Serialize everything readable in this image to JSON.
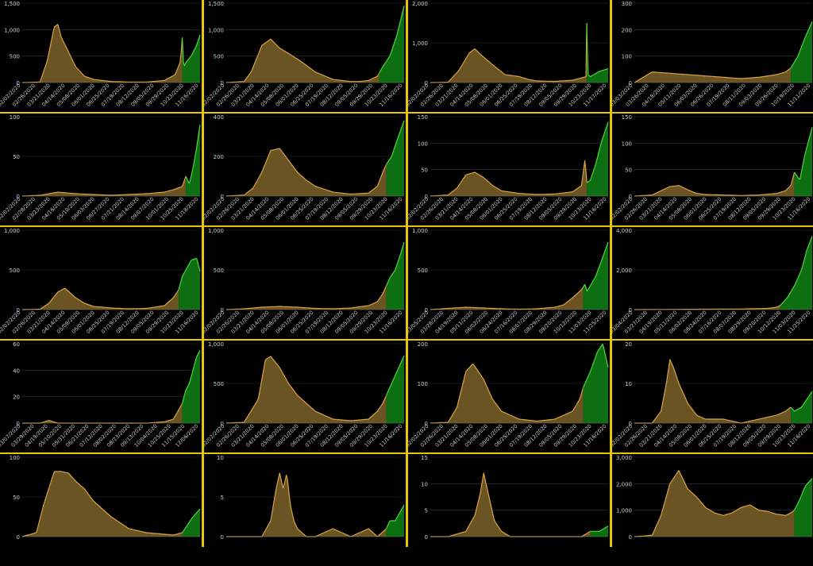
{
  "colors": {
    "early": "#d9a441",
    "early_fill": "#6b5423",
    "recent": "#4ad93c",
    "recent_fill": "#0e6e12",
    "axis_text": "#cccccc",
    "grid": "#333333",
    "divider": "#e6c800"
  },
  "chart_data": [
    {
      "type": "area",
      "ylim": [
        0,
        1500
      ],
      "yticks": [
        "0",
        "500",
        "1,000",
        "1,500"
      ],
      "xticks": [
        "02/02/2020",
        "02/26/2020",
        "03/21/2020",
        "04/14/2020",
        "05/08/2020",
        "06/01/2020",
        "06/25/2020",
        "07/19/2020",
        "08/12/2020",
        "09/05/2020",
        "09/29/2020",
        "10/23/2020",
        "11/16/2020"
      ],
      "split": 0.9,
      "x": [
        0,
        0.1,
        0.14,
        0.18,
        0.2,
        0.22,
        0.25,
        0.3,
        0.35,
        0.4,
        0.5,
        0.6,
        0.7,
        0.8,
        0.86,
        0.89,
        0.9,
        0.905,
        0.91,
        0.92,
        0.95,
        0.98,
        1
      ],
      "values": [
        0,
        10,
        400,
        1050,
        1100,
        850,
        650,
        300,
        120,
        60,
        20,
        10,
        10,
        40,
        150,
        400,
        850,
        400,
        300,
        380,
        500,
        700,
        900
      ]
    },
    {
      "type": "area",
      "ylim": [
        0,
        1500
      ],
      "yticks": [
        "0",
        "500",
        "1,000",
        "1,500"
      ],
      "xticks": [
        "02/02/2020",
        "02/26/2020",
        "03/21/2020",
        "04/14/2020",
        "05/08/2020",
        "06/01/2020",
        "06/25/2020",
        "07/19/2020",
        "08/12/2020",
        "09/05/2020",
        "09/29/2020",
        "10/23/2020",
        "11/16/2020"
      ],
      "split": 0.86,
      "x": [
        0,
        0.1,
        0.14,
        0.2,
        0.25,
        0.3,
        0.35,
        0.42,
        0.5,
        0.6,
        0.7,
        0.75,
        0.8,
        0.85,
        0.88,
        0.92,
        0.96,
        1
      ],
      "values": [
        0,
        20,
        200,
        700,
        820,
        650,
        550,
        400,
        200,
        60,
        20,
        20,
        40,
        120,
        300,
        500,
        900,
        1450
      ]
    },
    {
      "type": "area",
      "ylim": [
        0,
        2000
      ],
      "yticks": [
        "0",
        "1,000",
        "2,000"
      ],
      "xticks": [
        "02/02/2020",
        "02/26/2020",
        "03/21/2020",
        "04/14/2020",
        "05/08/2020",
        "06/01/2020",
        "06/25/2020",
        "07/19/2020",
        "08/12/2020",
        "09/05/2020",
        "09/29/2020",
        "10/23/2020",
        "11/17/2020"
      ],
      "split": 0.88,
      "x": [
        0,
        0.1,
        0.16,
        0.22,
        0.25,
        0.28,
        0.35,
        0.42,
        0.5,
        0.55,
        0.6,
        0.7,
        0.8,
        0.86,
        0.875,
        0.88,
        0.885,
        0.9,
        0.95,
        1
      ],
      "values": [
        0,
        10,
        300,
        750,
        850,
        720,
        450,
        200,
        150,
        80,
        40,
        30,
        60,
        130,
        150,
        1500,
        200,
        150,
        280,
        350
      ]
    },
    {
      "type": "area",
      "ylim": [
        0,
        300
      ],
      "yticks": [
        "0",
        "100",
        "200",
        "300"
      ],
      "xticks": [
        "03/03/2020",
        "03/26/2020",
        "04/18/2020",
        "05/11/2020",
        "06/03/2020",
        "06/26/2020",
        "07/19/2020",
        "08/11/2020",
        "09/03/2020",
        "09/26/2020",
        "10/19/2020",
        "11/11/2020"
      ],
      "split": 0.88,
      "x": [
        0,
        0.05,
        0.1,
        0.2,
        0.3,
        0.4,
        0.5,
        0.6,
        0.7,
        0.8,
        0.85,
        0.88,
        0.92,
        0.96,
        1
      ],
      "values": [
        0,
        20,
        40,
        35,
        30,
        25,
        20,
        15,
        20,
        30,
        40,
        55,
        100,
        170,
        230
      ]
    },
    {
      "type": "area",
      "ylim": [
        0,
        100
      ],
      "yticks": [
        "0",
        "50",
        "100"
      ],
      "xticks": [
        "02/02/2020",
        "02/28/2020",
        "03/23/2020",
        "04/16/2020",
        "05/10/2020",
        "06/03/2020",
        "06/27/2020",
        "07/21/2020",
        "08/14/2020",
        "09/07/2020",
        "10/01/2020",
        "10/25/2020",
        "11/18/2020"
      ],
      "split": 0.92,
      "x": [
        0,
        0.1,
        0.15,
        0.2,
        0.3,
        0.4,
        0.5,
        0.6,
        0.7,
        0.8,
        0.85,
        0.9,
        0.92,
        0.94,
        0.96,
        0.98,
        1
      ],
      "values": [
        0,
        1,
        3,
        5,
        3,
        2,
        1,
        2,
        3,
        5,
        8,
        12,
        25,
        15,
        35,
        60,
        90
      ]
    },
    {
      "type": "area",
      "ylim": [
        0,
        400
      ],
      "yticks": [
        "0",
        "200",
        "400"
      ],
      "xticks": [
        "02/02/2020",
        "02/26/2020",
        "03/21/2020",
        "04/14/2020",
        "05/08/2020",
        "06/01/2020",
        "06/25/2020",
        "07/19/2020",
        "08/12/2020",
        "09/05/2020",
        "09/29/2020",
        "10/23/2020",
        "11/16/2020"
      ],
      "split": 0.9,
      "x": [
        0,
        0.1,
        0.15,
        0.2,
        0.25,
        0.3,
        0.35,
        0.4,
        0.45,
        0.5,
        0.6,
        0.7,
        0.8,
        0.85,
        0.88,
        0.9,
        0.93,
        0.96,
        1
      ],
      "values": [
        0,
        5,
        40,
        120,
        230,
        240,
        180,
        120,
        80,
        50,
        20,
        10,
        15,
        50,
        120,
        160,
        200,
        280,
        380
      ]
    },
    {
      "type": "area",
      "ylim": [
        0,
        150
      ],
      "yticks": [
        "0",
        "50",
        "100",
        "150"
      ],
      "xticks": [
        "02/02/2020",
        "02/26/2020",
        "03/21/2020",
        "04/14/2020",
        "05/08/2020",
        "06/01/2020",
        "06/25/2020",
        "07/19/2020",
        "08/12/2020",
        "09/05/2020",
        "09/29/2020",
        "10/23/2020",
        "11/16/2020"
      ],
      "split": 0.88,
      "x": [
        0,
        0.1,
        0.15,
        0.2,
        0.25,
        0.3,
        0.35,
        0.4,
        0.5,
        0.6,
        0.7,
        0.8,
        0.85,
        0.87,
        0.88,
        0.9,
        0.93,
        0.96,
        1
      ],
      "values": [
        0,
        2,
        15,
        40,
        45,
        35,
        20,
        10,
        5,
        3,
        4,
        8,
        20,
        70,
        25,
        30,
        60,
        100,
        140
      ]
    },
    {
      "type": "area",
      "ylim": [
        0,
        150
      ],
      "yticks": [
        "0",
        "50",
        "100",
        "150"
      ],
      "xticks": [
        "02/02/2020",
        "02/26/2020",
        "03/21/2020",
        "04/14/2020",
        "05/08/2020",
        "06/01/2020",
        "06/25/2020",
        "07/19/2020",
        "08/12/2020",
        "09/05/2020",
        "09/29/2020",
        "10/23/2020",
        "11/16/2020"
      ],
      "split": 0.9,
      "x": [
        0,
        0.1,
        0.15,
        0.2,
        0.25,
        0.3,
        0.35,
        0.4,
        0.5,
        0.6,
        0.7,
        0.8,
        0.85,
        0.88,
        0.9,
        0.93,
        0.96,
        1
      ],
      "values": [
        0,
        2,
        10,
        18,
        20,
        12,
        5,
        3,
        2,
        1,
        2,
        5,
        10,
        20,
        45,
        30,
        80,
        130
      ]
    },
    {
      "type": "area",
      "ylim": [
        0,
        1000
      ],
      "yticks": [
        "0",
        "500",
        "1,000"
      ],
      "xticks": [
        "02/02/2020",
        "02/26/2020",
        "03/21/2020",
        "04/14/2020",
        "05/08/2020",
        "06/01/2020",
        "06/25/2020",
        "07/19/2020",
        "08/12/2020",
        "09/05/2020",
        "09/29/2020",
        "10/23/2020",
        "11/16/2020"
      ],
      "split": 0.88,
      "x": [
        0,
        0.1,
        0.15,
        0.2,
        0.24,
        0.3,
        0.35,
        0.4,
        0.5,
        0.6,
        0.7,
        0.8,
        0.85,
        0.88,
        0.9,
        0.92,
        0.95,
        0.98,
        1
      ],
      "values": [
        0,
        5,
        80,
        220,
        270,
        150,
        80,
        40,
        20,
        10,
        15,
        50,
        150,
        250,
        420,
        500,
        620,
        650,
        480
      ]
    },
    {
      "type": "area",
      "ylim": [
        0,
        1000
      ],
      "yticks": [
        "0",
        "500",
        "1,000"
      ],
      "xticks": [
        "02/02/2020",
        "02/26/2020",
        "03/21/2020",
        "04/14/2020",
        "05/08/2020",
        "06/01/2020",
        "06/25/2020",
        "07/19/2020",
        "08/12/2020",
        "09/05/2020",
        "09/29/2020",
        "10/23/2020",
        "11/16/2020"
      ],
      "split": 0.9,
      "x": [
        0,
        0.1,
        0.2,
        0.3,
        0.4,
        0.5,
        0.6,
        0.7,
        0.8,
        0.85,
        0.88,
        0.9,
        0.92,
        0.95,
        0.98,
        1
      ],
      "values": [
        0,
        10,
        30,
        40,
        30,
        15,
        10,
        20,
        50,
        100,
        200,
        300,
        400,
        500,
        700,
        850
      ]
    },
    {
      "type": "area",
      "ylim": [
        0,
        1000
      ],
      "yticks": [
        "0",
        "500",
        "1,000"
      ],
      "xticks": [
        "03/05/2020",
        "03/28/2020",
        "04/19/2020",
        "05/11/2020",
        "06/02/2020",
        "06/24/2020",
        "07/16/2020",
        "08/07/2020",
        "08/29/2020",
        "09/20/2020",
        "10/12/2020",
        "11/03/2020",
        "11/25/2020"
      ],
      "split": 0.86,
      "x": [
        0,
        0.1,
        0.2,
        0.3,
        0.4,
        0.5,
        0.6,
        0.7,
        0.75,
        0.8,
        0.85,
        0.87,
        0.88,
        0.9,
        0.93,
        0.96,
        1
      ],
      "values": [
        0,
        15,
        30,
        20,
        10,
        5,
        10,
        30,
        60,
        150,
        250,
        320,
        230,
        300,
        420,
        600,
        850
      ]
    },
    {
      "type": "area",
      "ylim": [
        0,
        4000
      ],
      "yticks": [
        "0",
        "2,000",
        "4,000"
      ],
      "xticks": [
        "03/04/2020",
        "03/27/2020",
        "04/19/2020",
        "05/11/2020",
        "06/02/2020",
        "06/24/2020",
        "07/16/2020",
        "08/07/2020",
        "08/29/2020",
        "09/20/2020",
        "10/12/2020",
        "11/03/2020",
        "11/25/2020"
      ],
      "split": 0.82,
      "x": [
        0,
        0.2,
        0.4,
        0.6,
        0.75,
        0.8,
        0.82,
        0.86,
        0.9,
        0.94,
        0.97,
        1
      ],
      "values": [
        0,
        10,
        20,
        30,
        60,
        120,
        200,
        600,
        1200,
        2000,
        3000,
        3700
      ]
    },
    {
      "type": "area",
      "ylim": [
        0,
        60
      ],
      "yticks": [
        "0",
        "20",
        "40",
        "60"
      ],
      "xticks": [
        "03/07/2020",
        "03/29/2020",
        "04/19/2020",
        "05/10/2020",
        "05/31/2020",
        "06/21/2020",
        "07/12/2020",
        "08/02/2020",
        "08/23/2020",
        "09/13/2020",
        "10/04/2020",
        "10/25/2020",
        "11/15/2020",
        "12/06/2020"
      ],
      "split": 0.9,
      "x": [
        0,
        0.1,
        0.15,
        0.2,
        0.3,
        0.4,
        0.5,
        0.6,
        0.7,
        0.8,
        0.85,
        0.88,
        0.9,
        0.92,
        0.94,
        0.96,
        0.98,
        1
      ],
      "values": [
        0,
        0,
        2,
        0,
        0,
        0,
        0,
        0,
        0,
        1,
        3,
        10,
        15,
        25,
        30,
        40,
        50,
        55
      ]
    },
    {
      "type": "area",
      "ylim": [
        0,
        1000
      ],
      "yticks": [
        "0",
        "500",
        "1,000"
      ],
      "xticks": [
        "02/02/2020",
        "02/26/2020",
        "03/21/2020",
        "04/14/2020",
        "05/08/2020",
        "06/01/2020",
        "06/25/2020",
        "07/19/2020",
        "08/12/2020",
        "09/05/2020",
        "09/29/2020",
        "10/23/2020",
        "11/16/2020"
      ],
      "split": 0.9,
      "x": [
        0,
        0.1,
        0.18,
        0.22,
        0.25,
        0.3,
        0.35,
        0.4,
        0.5,
        0.6,
        0.7,
        0.8,
        0.85,
        0.88,
        0.9,
        0.93,
        0.96,
        1
      ],
      "values": [
        0,
        10,
        300,
        800,
        840,
        700,
        500,
        350,
        150,
        50,
        30,
        50,
        150,
        250,
        350,
        500,
        650,
        850
      ]
    },
    {
      "type": "area",
      "ylim": [
        0,
        200
      ],
      "yticks": [
        "0",
        "100",
        "200"
      ],
      "xticks": [
        "02/02/2020",
        "02/26/2020",
        "03/21/2020",
        "04/14/2020",
        "05/08/2020",
        "06/01/2020",
        "06/25/2020",
        "07/19/2020",
        "08/12/2020",
        "09/05/2020",
        "09/29/2020",
        "10/23/2020",
        "11/16/2020"
      ],
      "split": 0.86,
      "x": [
        0,
        0.1,
        0.15,
        0.2,
        0.24,
        0.3,
        0.35,
        0.4,
        0.5,
        0.6,
        0.7,
        0.8,
        0.84,
        0.86,
        0.9,
        0.94,
        0.97,
        1
      ],
      "values": [
        0,
        2,
        40,
        130,
        150,
        110,
        60,
        30,
        10,
        5,
        10,
        30,
        60,
        90,
        130,
        180,
        200,
        140
      ]
    },
    {
      "type": "area",
      "ylim": [
        0,
        20
      ],
      "yticks": [
        "0",
        "10",
        "20"
      ],
      "xticks": [
        "02/02/2020",
        "02/26/2020",
        "03/21/2020",
        "04/14/2020",
        "05/08/2020",
        "06/01/2020",
        "06/25/2020",
        "07/19/2020",
        "08/12/2020",
        "09/05/2020",
        "09/29/2020",
        "10/23/2020",
        "11/16/2020"
      ],
      "split": 0.88,
      "x": [
        0,
        0.1,
        0.15,
        0.18,
        0.2,
        0.22,
        0.25,
        0.28,
        0.3,
        0.35,
        0.4,
        0.5,
        0.6,
        0.7,
        0.8,
        0.85,
        0.88,
        0.9,
        0.94,
        0.97,
        1
      ],
      "values": [
        0,
        0,
        3,
        10,
        16,
        14,
        10,
        7,
        5,
        2,
        1,
        1,
        0,
        1,
        2,
        3,
        4,
        3,
        4,
        6,
        8
      ]
    },
    {
      "type": "area",
      "ylim": [
        0,
        100
      ],
      "yticks": [
        "0",
        "50",
        "100"
      ],
      "xticks": [],
      "split": 0.9,
      "x": [
        0,
        0.08,
        0.12,
        0.18,
        0.22,
        0.26,
        0.3,
        0.35,
        0.4,
        0.45,
        0.5,
        0.6,
        0.7,
        0.8,
        0.85,
        0.9,
        0.93,
        0.96,
        1
      ],
      "values": [
        0,
        5,
        40,
        82,
        82,
        80,
        70,
        60,
        45,
        35,
        25,
        10,
        5,
        3,
        2,
        5,
        15,
        25,
        35
      ]
    },
    {
      "type": "area",
      "ylim": [
        0,
        10
      ],
      "yticks": [
        "0",
        "5",
        "10"
      ],
      "xticks": [],
      "split": 0.9,
      "x": [
        0,
        0.2,
        0.25,
        0.28,
        0.3,
        0.32,
        0.34,
        0.36,
        0.38,
        0.4,
        0.45,
        0.5,
        0.6,
        0.7,
        0.8,
        0.85,
        0.9,
        0.92,
        0.95,
        1
      ],
      "values": [
        0,
        0,
        2,
        6,
        8,
        6,
        8,
        4,
        2,
        1,
        0,
        0,
        1,
        0,
        1,
        0,
        1,
        2,
        2,
        4
      ]
    },
    {
      "type": "area",
      "ylim": [
        0,
        15
      ],
      "yticks": [
        "0",
        "5",
        "10",
        "15"
      ],
      "xticks": [],
      "split": 0.9,
      "x": [
        0,
        0.1,
        0.2,
        0.25,
        0.28,
        0.3,
        0.32,
        0.34,
        0.36,
        0.4,
        0.45,
        0.5,
        0.6,
        0.7,
        0.8,
        0.85,
        0.9,
        0.95,
        1
      ],
      "values": [
        0,
        0,
        1,
        4,
        8,
        12,
        9,
        6,
        3,
        1,
        0,
        0,
        0,
        0,
        0,
        0,
        1,
        1,
        2
      ]
    },
    {
      "type": "area",
      "ylim": [
        0,
        3000
      ],
      "yticks": [
        "0",
        "1,000",
        "2,000",
        "3,000"
      ],
      "xticks": [],
      "split": 0.9,
      "x": [
        0,
        0.1,
        0.15,
        0.2,
        0.25,
        0.3,
        0.35,
        0.4,
        0.45,
        0.5,
        0.55,
        0.6,
        0.65,
        0.7,
        0.75,
        0.8,
        0.85,
        0.88,
        0.9,
        0.93,
        0.96,
        1
      ],
      "values": [
        0,
        50,
        800,
        2000,
        2500,
        1800,
        1500,
        1100,
        900,
        800,
        900,
        1100,
        1200,
        1000,
        950,
        850,
        800,
        900,
        1000,
        1400,
        1900,
        2200
      ]
    }
  ]
}
